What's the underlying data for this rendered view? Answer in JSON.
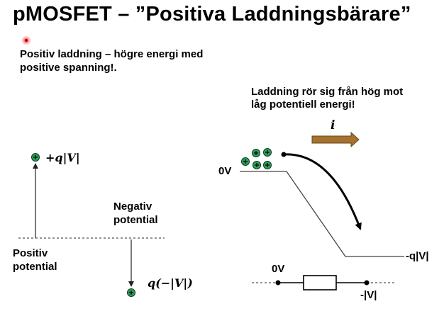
{
  "slide": {
    "title": "pMOSFET – ”Positiva Laddningsbärare”",
    "intro_line1": "Positiv laddning – högre energi med",
    "intro_line2": "positive spanning!.",
    "right_note_line1": "Laddning rör sig från hög mot",
    "right_note_line2": "låg potentiell energi!"
  },
  "left_diagram": {
    "top_charge_label": "+q|V|",
    "negative_label_line1": "Negativ",
    "negative_label_line2": "potential",
    "positive_label_line1": "Positiv",
    "positive_label_line2": "potential",
    "bottom_charge_label": "q(−|V|)"
  },
  "right_diagram": {
    "current_symbol": "i",
    "top_level_label": "0V",
    "bottom_level_label": "-q|V|",
    "resistor_left_label": "0V",
    "resistor_right_label": "-|V|"
  },
  "colors": {
    "charge_fill": "#2e9e5b",
    "arrow_fill": "#a5722f",
    "pointer": "#d11f1f"
  }
}
